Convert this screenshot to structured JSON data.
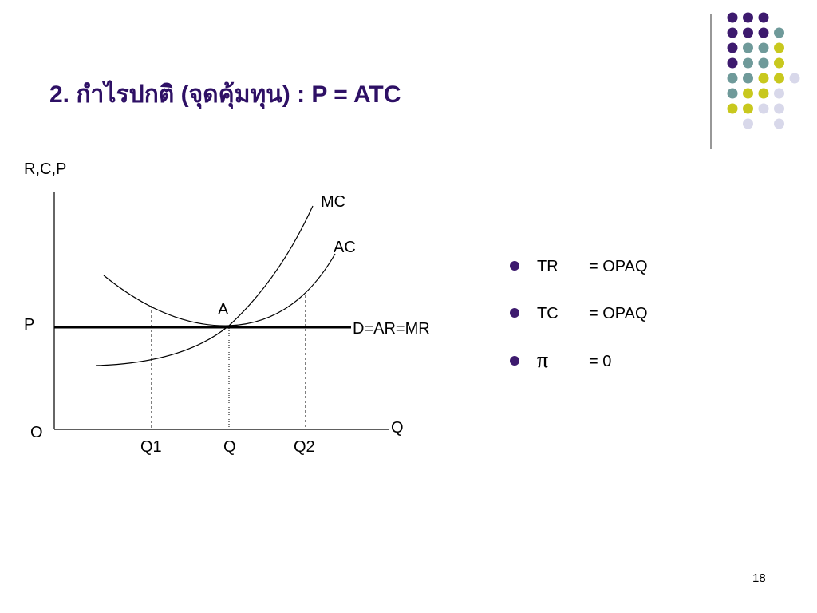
{
  "header": {
    "title": "2. กำไรปกติ (จุดคุ้มทุน) : P = ATC"
  },
  "diagram": {
    "y_axis_label": "R,C,P",
    "x_axis_label": "Q",
    "origin_label": "O",
    "price_label": "P",
    "mc_label": "MC",
    "ac_label": "AC",
    "point_label": "A",
    "demand_label": "D=AR=MR",
    "q_labels": [
      "Q1",
      "Q",
      "Q2"
    ]
  },
  "bullets": [
    {
      "term": "TR",
      "value": "= OPAQ"
    },
    {
      "term": "TC",
      "value": "= OPAQ"
    },
    {
      "term": "π",
      "value": "= 0"
    }
  ],
  "footer": {
    "page": "18"
  }
}
